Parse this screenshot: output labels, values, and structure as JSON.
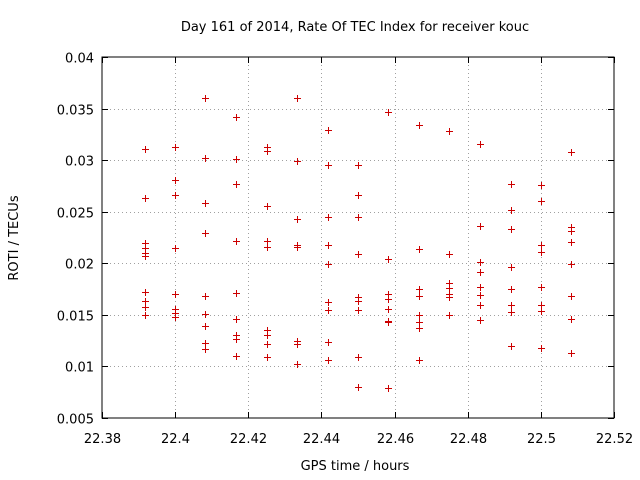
{
  "chart_data": {
    "type": "scatter",
    "title": "Day 161 of 2014, Rate Of TEC Index for receiver kouc",
    "xlabel": "GPS time / hours",
    "ylabel": "ROTI / TECUs",
    "xlim": [
      22.38,
      22.52
    ],
    "ylim": [
      0.005,
      0.04
    ],
    "grid": true,
    "marker": "+",
    "marker_color": "#cc0000",
    "x_ticks": [
      22.38,
      22.4,
      22.42,
      22.44,
      22.46,
      22.48,
      22.5,
      22.52
    ],
    "x_tick_labels": [
      "22.38",
      "22.4",
      "22.42",
      "22.44",
      "22.46",
      "22.48",
      "22.5",
      "22.52"
    ],
    "y_ticks": [
      0.005,
      0.01,
      0.015,
      0.02,
      0.025,
      0.03,
      0.035,
      0.04
    ],
    "y_tick_labels": [
      "0.005",
      "0.01",
      "0.015",
      "0.02",
      "0.025",
      "0.03",
      "0.035",
      "0.04"
    ],
    "series": [
      {
        "name": "ROTI",
        "points": [
          [
            22.3917,
            0.0311
          ],
          [
            22.3917,
            0.0263
          ],
          [
            22.3917,
            0.022
          ],
          [
            22.3917,
            0.0215
          ],
          [
            22.3917,
            0.021
          ],
          [
            22.3917,
            0.0207
          ],
          [
            22.3917,
            0.0172
          ],
          [
            22.3917,
            0.0163
          ],
          [
            22.3917,
            0.0158
          ],
          [
            22.3917,
            0.015
          ],
          [
            22.4,
            0.0313
          ],
          [
            22.4,
            0.0281
          ],
          [
            22.4,
            0.0266
          ],
          [
            22.4,
            0.0215
          ],
          [
            22.4,
            0.017
          ],
          [
            22.4,
            0.0156
          ],
          [
            22.4,
            0.0152
          ],
          [
            22.4,
            0.0148
          ],
          [
            22.4083,
            0.036
          ],
          [
            22.4083,
            0.0302
          ],
          [
            22.4083,
            0.0258
          ],
          [
            22.4083,
            0.0229
          ],
          [
            22.4083,
            0.0168
          ],
          [
            22.4083,
            0.0151
          ],
          [
            22.4083,
            0.0139
          ],
          [
            22.4083,
            0.0123
          ],
          [
            22.4083,
            0.0117
          ],
          [
            22.4167,
            0.0342
          ],
          [
            22.4167,
            0.0301
          ],
          [
            22.4167,
            0.0277
          ],
          [
            22.4167,
            0.0222
          ],
          [
            22.4167,
            0.0171
          ],
          [
            22.4167,
            0.0146
          ],
          [
            22.4167,
            0.013
          ],
          [
            22.4167,
            0.0127
          ],
          [
            22.4167,
            0.011
          ],
          [
            22.425,
            0.0313
          ],
          [
            22.425,
            0.0309
          ],
          [
            22.425,
            0.0256
          ],
          [
            22.425,
            0.0222
          ],
          [
            22.425,
            0.0216
          ],
          [
            22.425,
            0.0135
          ],
          [
            22.425,
            0.013
          ],
          [
            22.425,
            0.0122
          ],
          [
            22.425,
            0.0109
          ],
          [
            22.4333,
            0.036
          ],
          [
            22.4333,
            0.0299
          ],
          [
            22.4333,
            0.0243
          ],
          [
            22.4333,
            0.0218
          ],
          [
            22.4333,
            0.0216
          ],
          [
            22.4333,
            0.0125
          ],
          [
            22.4333,
            0.0122
          ],
          [
            22.4333,
            0.0102
          ],
          [
            22.4417,
            0.0329
          ],
          [
            22.4417,
            0.0295
          ],
          [
            22.4417,
            0.0245
          ],
          [
            22.4417,
            0.0218
          ],
          [
            22.4417,
            0.0199
          ],
          [
            22.4417,
            0.0162
          ],
          [
            22.4417,
            0.0155
          ],
          [
            22.4417,
            0.0124
          ],
          [
            22.4417,
            0.0106
          ],
          [
            22.45,
            0.0295
          ],
          [
            22.45,
            0.0266
          ],
          [
            22.45,
            0.0245
          ],
          [
            22.45,
            0.0209
          ],
          [
            22.45,
            0.0167
          ],
          [
            22.45,
            0.0163
          ],
          [
            22.45,
            0.0155
          ],
          [
            22.45,
            0.0109
          ],
          [
            22.45,
            0.008
          ],
          [
            22.4583,
            0.0347
          ],
          [
            22.4583,
            0.0204
          ],
          [
            22.4583,
            0.017
          ],
          [
            22.4583,
            0.0165
          ],
          [
            22.4583,
            0.0156
          ],
          [
            22.4583,
            0.0144
          ],
          [
            22.4583,
            0.0143
          ],
          [
            22.4583,
            0.0079
          ],
          [
            22.4667,
            0.0334
          ],
          [
            22.4667,
            0.0214
          ],
          [
            22.4667,
            0.0175
          ],
          [
            22.4667,
            0.0168
          ],
          [
            22.4667,
            0.015
          ],
          [
            22.4667,
            0.0143
          ],
          [
            22.4667,
            0.0137
          ],
          [
            22.4667,
            0.0106
          ],
          [
            22.475,
            0.0328
          ],
          [
            22.475,
            0.0209
          ],
          [
            22.475,
            0.0181
          ],
          [
            22.475,
            0.0176
          ],
          [
            22.475,
            0.017
          ],
          [
            22.475,
            0.0167
          ],
          [
            22.475,
            0.015
          ],
          [
            22.4833,
            0.0316
          ],
          [
            22.4833,
            0.0236
          ],
          [
            22.4833,
            0.0201
          ],
          [
            22.4833,
            0.0192
          ],
          [
            22.4833,
            0.0177
          ],
          [
            22.4833,
            0.0169
          ],
          [
            22.4833,
            0.016
          ],
          [
            22.4833,
            0.0145
          ],
          [
            22.4917,
            0.0277
          ],
          [
            22.4917,
            0.0252
          ],
          [
            22.4917,
            0.0233
          ],
          [
            22.4917,
            0.0196
          ],
          [
            22.4917,
            0.0175
          ],
          [
            22.4917,
            0.016
          ],
          [
            22.4917,
            0.0153
          ],
          [
            22.4917,
            0.012
          ],
          [
            22.5,
            0.0276
          ],
          [
            22.5,
            0.026
          ],
          [
            22.5,
            0.0218
          ],
          [
            22.5,
            0.0211
          ],
          [
            22.5,
            0.0177
          ],
          [
            22.5,
            0.016
          ],
          [
            22.5,
            0.0154
          ],
          [
            22.5,
            0.0118
          ],
          [
            22.5083,
            0.0308
          ],
          [
            22.5083,
            0.0235
          ],
          [
            22.5083,
            0.0231
          ],
          [
            22.5083,
            0.0221
          ],
          [
            22.5083,
            0.0199
          ],
          [
            22.5083,
            0.0168
          ],
          [
            22.5083,
            0.0146
          ],
          [
            22.5083,
            0.0113
          ]
        ]
      }
    ]
  }
}
